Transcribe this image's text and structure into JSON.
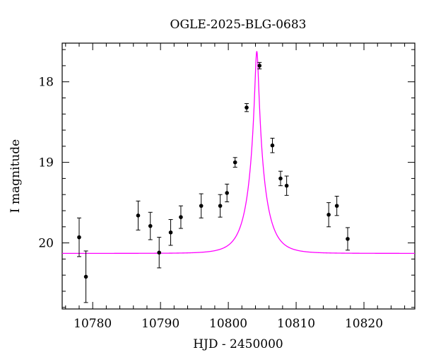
{
  "chart_data": {
    "type": "scatter",
    "title": "OGLE-2025-BLG-0683",
    "xlabel": "HJD - 2450000",
    "ylabel": "I magnitude",
    "xlim": [
      10775.5,
      10827.5
    ],
    "ylim": [
      20.82,
      17.52
    ],
    "y_inverted": true,
    "x_ticks": [
      10780,
      10790,
      10800,
      10810,
      10820
    ],
    "y_ticks": [
      18,
      19,
      20
    ],
    "grid": false,
    "model_color": "#ff00ff",
    "point_color": "#000000",
    "model_curve": {
      "t0": 10804.2,
      "peak_mag": 17.62,
      "baseline_mag": 20.13,
      "tau": 2.5,
      "model": "Paczynski single-lens point-source"
    },
    "points": [
      {
        "x": 10778.0,
        "y": 19.93,
        "err": 0.24
      },
      {
        "x": 10779.0,
        "y": 20.42,
        "err": 0.32
      },
      {
        "x": 10786.7,
        "y": 19.66,
        "err": 0.18
      },
      {
        "x": 10788.5,
        "y": 19.79,
        "err": 0.17
      },
      {
        "x": 10789.8,
        "y": 20.12,
        "err": 0.19
      },
      {
        "x": 10791.5,
        "y": 19.87,
        "err": 0.16
      },
      {
        "x": 10793.0,
        "y": 19.68,
        "err": 0.14
      },
      {
        "x": 10796.0,
        "y": 19.54,
        "err": 0.15
      },
      {
        "x": 10798.8,
        "y": 19.54,
        "err": 0.14
      },
      {
        "x": 10799.8,
        "y": 19.38,
        "err": 0.11
      },
      {
        "x": 10801.0,
        "y": 19.0,
        "err": 0.06
      },
      {
        "x": 10802.7,
        "y": 18.32,
        "err": 0.05
      },
      {
        "x": 10804.6,
        "y": 17.8,
        "err": 0.04
      },
      {
        "x": 10806.5,
        "y": 18.79,
        "err": 0.09
      },
      {
        "x": 10807.7,
        "y": 19.2,
        "err": 0.09
      },
      {
        "x": 10808.6,
        "y": 19.29,
        "err": 0.12
      },
      {
        "x": 10814.8,
        "y": 19.65,
        "err": 0.15
      },
      {
        "x": 10816.0,
        "y": 19.54,
        "err": 0.12
      },
      {
        "x": 10817.6,
        "y": 19.95,
        "err": 0.14
      }
    ]
  }
}
